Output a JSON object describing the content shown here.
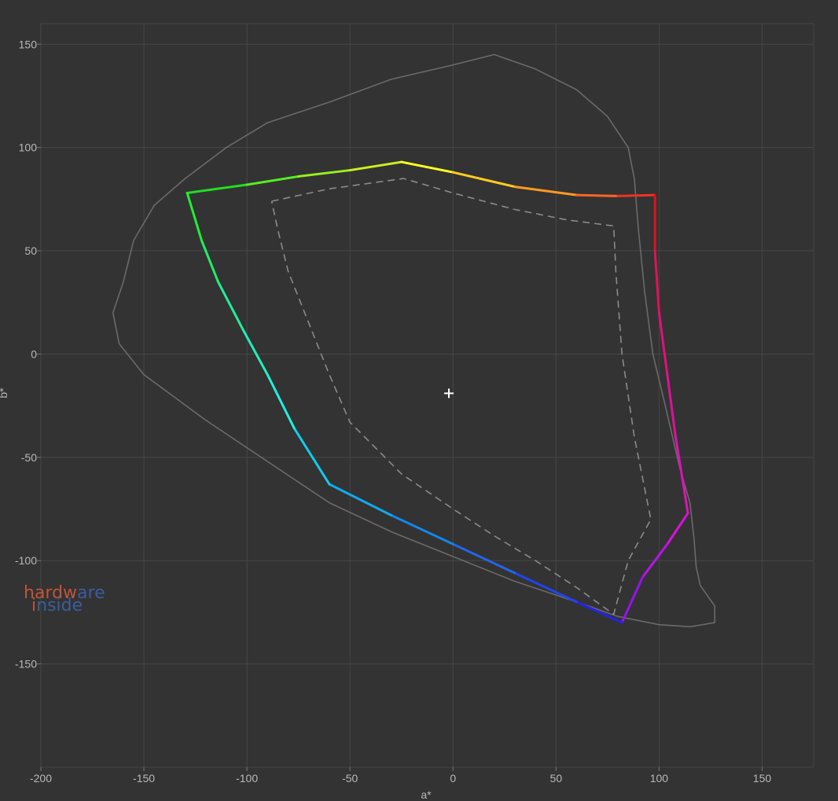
{
  "chart_data": {
    "type": "line",
    "xlabel": "a*",
    "ylabel": "b*",
    "xlim": [
      -200,
      175
    ],
    "ylim": [
      -200,
      160
    ],
    "x_ticks": [
      -200,
      -150,
      -100,
      -50,
      0,
      50,
      100,
      150
    ],
    "y_ticks": [
      150,
      100,
      50,
      0,
      -50,
      -100,
      -150
    ],
    "grid": true,
    "white_point": {
      "a": -2,
      "b": -19
    },
    "watermark": {
      "word1": "hardware",
      "word2": "inside",
      "color_orange": "#c0553a",
      "color_blue": "#3a5ea0"
    },
    "series": [
      {
        "style": "outline",
        "color": "#6a6a6a",
        "points": [
          [
            -165,
            20
          ],
          [
            -160,
            35
          ],
          [
            -155,
            55
          ],
          [
            -145,
            72
          ],
          [
            -130,
            85
          ],
          [
            -110,
            100
          ],
          [
            -90,
            112
          ],
          [
            -60,
            122
          ],
          [
            -30,
            133
          ],
          [
            0,
            140
          ],
          [
            20,
            145
          ],
          [
            40,
            138
          ],
          [
            60,
            128
          ],
          [
            75,
            115
          ],
          [
            85,
            100
          ],
          [
            88,
            85
          ],
          [
            90,
            60
          ],
          [
            93,
            30
          ],
          [
            97,
            0
          ],
          [
            103,
            -25
          ],
          [
            110,
            -55
          ],
          [
            115,
            -72
          ],
          [
            117,
            -90
          ],
          [
            118,
            -103
          ],
          [
            120,
            -112
          ],
          [
            127,
            -122
          ],
          [
            127,
            -130
          ],
          [
            115,
            -132
          ],
          [
            100,
            -131
          ],
          [
            80,
            -127
          ],
          [
            60,
            -120
          ],
          [
            30,
            -110
          ],
          [
            0,
            -98
          ],
          [
            -30,
            -86
          ],
          [
            -60,
            -72
          ],
          [
            -90,
            -52
          ],
          [
            -120,
            -32
          ],
          [
            -150,
            -10
          ],
          [
            -162,
            5
          ],
          [
            -165,
            20
          ]
        ]
      },
      {
        "style": "dashed",
        "color": "#8a8a8a",
        "points": [
          [
            -88,
            74
          ],
          [
            -60,
            80
          ],
          [
            -24,
            85
          ],
          [
            0,
            78
          ],
          [
            30,
            70
          ],
          [
            55,
            65
          ],
          [
            78,
            62
          ],
          [
            79,
            40
          ],
          [
            82,
            0
          ],
          [
            88,
            -40
          ],
          [
            96,
            -80
          ],
          [
            85,
            -100
          ],
          [
            78,
            -126
          ],
          [
            60,
            -113
          ],
          [
            40,
            -100
          ],
          [
            20,
            -88
          ],
          [
            0,
            -75
          ],
          [
            -25,
            -58
          ],
          [
            -50,
            -33
          ],
          [
            -60,
            -10
          ],
          [
            -70,
            15
          ],
          [
            -80,
            40
          ],
          [
            -85,
            60
          ],
          [
            -88,
            74
          ]
        ]
      },
      {
        "style": "colored-gamut",
        "points": [
          [
            -129,
            78
          ],
          [
            -100,
            82
          ],
          [
            -75,
            86
          ],
          [
            -50,
            89
          ],
          [
            -25,
            93
          ],
          [
            0,
            88
          ],
          [
            30,
            81
          ],
          [
            60,
            77
          ],
          [
            80,
            76.5
          ],
          [
            98,
            77
          ],
          [
            98,
            50
          ],
          [
            100,
            20
          ],
          [
            104,
            -10
          ],
          [
            108,
            -40
          ],
          [
            114,
            -77
          ],
          [
            104,
            -92
          ],
          [
            92,
            -108
          ],
          [
            82,
            -130
          ],
          [
            60,
            -120
          ],
          [
            30,
            -106
          ],
          [
            0,
            -92
          ],
          [
            -30,
            -78
          ],
          [
            -60,
            -63
          ],
          [
            -77,
            -36
          ],
          [
            -90,
            -10
          ],
          [
            -102,
            12
          ],
          [
            -114,
            35
          ],
          [
            -122,
            55
          ],
          [
            -129,
            78
          ]
        ],
        "colors": [
          "#22dd22",
          "#55ee22",
          "#99ee22",
          "#ccee22",
          "#ffff22",
          "#ffcc22",
          "#ff9922",
          "#ff6622",
          "#ee3322",
          "#dd1122",
          "#e0115a",
          "#e0117a",
          "#e01199",
          "#e011b8",
          "#dd11dd",
          "#bb11ee",
          "#9911ee",
          "#2222ee",
          "#2244ee",
          "#2266ee",
          "#1188ee",
          "#11aaee",
          "#11ccee",
          "#22eedd",
          "#22eebb",
          "#22ee99",
          "#22ee66",
          "#22ee33"
        ]
      }
    ]
  }
}
